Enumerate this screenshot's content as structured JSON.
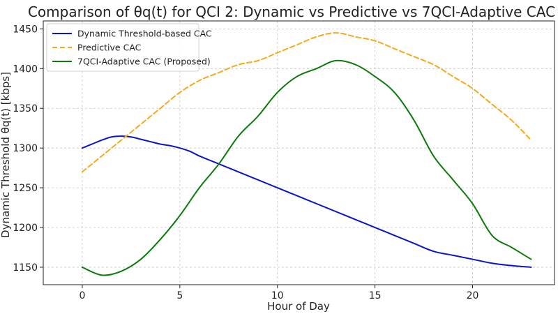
{
  "chart_data": {
    "type": "line",
    "title": "Comparison of θq(t) for QCI 2: Dynamic vs Predictive vs 7QCI-Adaptive CAC",
    "xlabel": "Hour of Day",
    "ylabel": "Dynamic Threshold θq(t) [kbps]",
    "xlim": [
      -2,
      24.2
    ],
    "ylim": [
      1128,
      1460
    ],
    "x_ticks": [
      0,
      5,
      10,
      15,
      20
    ],
    "y_ticks": [
      1150,
      1200,
      1250,
      1300,
      1350,
      1400,
      1450
    ],
    "grid": true,
    "legend_position": "top-left",
    "series": [
      {
        "name": "Dynamic Threshold-based CAC",
        "color": "#0a14c8",
        "dash": "solid",
        "x": [
          0,
          0.5,
          1,
          1.5,
          2,
          2.5,
          3,
          3.5,
          4,
          4.5,
          5,
          5.5,
          6,
          6.5,
          7,
          8,
          9,
          10,
          11,
          12,
          13,
          14,
          15,
          16,
          17,
          18,
          19,
          20,
          21,
          22,
          23
        ],
        "y": [
          1300,
          1305,
          1310,
          1314,
          1315,
          1314,
          1311,
          1308,
          1305,
          1303,
          1300,
          1296,
          1290,
          1285,
          1280,
          1270,
          1260,
          1250,
          1240,
          1230,
          1220,
          1210,
          1200,
          1190,
          1180,
          1170,
          1165,
          1160,
          1155,
          1152,
          1150
        ]
      },
      {
        "name": "Predictive CAC",
        "color": "#f5a91b",
        "dash": "dashed",
        "x": [
          0,
          1,
          2,
          3,
          4,
          5,
          6,
          7,
          8,
          9,
          10,
          11,
          12,
          13,
          14,
          15,
          16,
          17,
          18,
          19,
          20,
          21,
          22,
          23
        ],
        "y": [
          1270,
          1290,
          1310,
          1330,
          1350,
          1370,
          1385,
          1395,
          1405,
          1410,
          1420,
          1430,
          1440,
          1445,
          1440,
          1435,
          1425,
          1415,
          1405,
          1390,
          1375,
          1355,
          1335,
          1310
        ]
      },
      {
        "name": "7QCI-Adaptive CAC (Proposed)",
        "color": "#0b7a0b",
        "dash": "solid",
        "x": [
          0,
          1,
          2,
          3,
          4,
          5,
          6,
          7,
          8,
          9,
          10,
          11,
          12,
          13,
          14,
          15,
          16,
          17,
          18,
          19,
          20,
          21,
          22,
          23
        ],
        "y": [
          1150,
          1140,
          1145,
          1160,
          1185,
          1215,
          1250,
          1280,
          1315,
          1340,
          1370,
          1390,
          1400,
          1410,
          1405,
          1390,
          1370,
          1335,
          1290,
          1260,
          1230,
          1190,
          1175,
          1160
        ]
      }
    ]
  }
}
